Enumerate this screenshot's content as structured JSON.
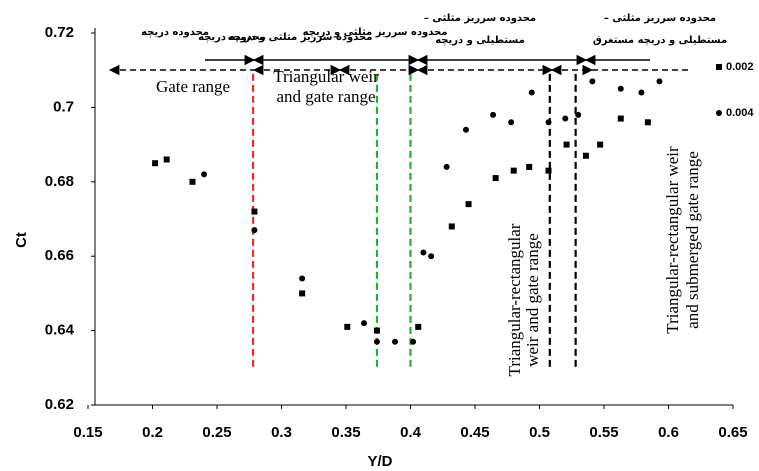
{
  "chart_data": {
    "type": "scatter",
    "x_label": "Y/D",
    "y_label": "Ct",
    "xlim": [
      0.15,
      0.65
    ],
    "xticks": [
      0.15,
      0.2,
      0.25,
      0.3,
      0.35,
      0.4,
      0.45,
      0.5,
      0.55,
      0.6,
      0.65
    ],
    "ylim": [
      0.62,
      0.72
    ],
    "yticks": [
      0.62,
      0.64,
      0.66,
      0.68,
      0.7,
      0.72
    ],
    "series": [
      {
        "name": "0.002",
        "marker": "square",
        "color": "#000000",
        "x": [
          0.202,
          0.211,
          0.231,
          0.279,
          0.316,
          0.351,
          0.374,
          0.406,
          0.432,
          0.445,
          0.466,
          0.48,
          0.492,
          0.507,
          0.521,
          0.536,
          0.547,
          0.563,
          0.584
        ],
        "values": [
          0.685,
          0.686,
          0.68,
          0.672,
          0.65,
          0.641,
          0.64,
          0.641,
          0.668,
          0.674,
          0.681,
          0.683,
          0.684,
          0.683,
          0.69,
          0.687,
          0.69,
          0.697,
          0.696
        ]
      },
      {
        "name": "0.004",
        "marker": "circle",
        "color": "#000000",
        "x": [
          0.24,
          0.279,
          0.316,
          0.364,
          0.374,
          0.388,
          0.402,
          0.41,
          0.416,
          0.428,
          0.443,
          0.464,
          0.478,
          0.494,
          0.507,
          0.52,
          0.53,
          0.541,
          0.563,
          0.579,
          0.593
        ],
        "values": [
          0.682,
          0.667,
          0.654,
          0.642,
          0.637,
          0.637,
          0.637,
          0.661,
          0.66,
          0.684,
          0.694,
          0.698,
          0.696,
          0.704,
          0.696,
          0.697,
          0.698,
          0.707,
          0.705,
          0.704,
          0.707
        ]
      }
    ],
    "reference_lines": [
      {
        "x": 0.278,
        "color": "#e03030"
      },
      {
        "x": 0.374,
        "color": "#2eaa3c"
      },
      {
        "x": 0.4,
        "color": "#2eaa3c"
      },
      {
        "x": 0.508,
        "color": "#000000"
      },
      {
        "x": 0.528,
        "color": "#000000"
      }
    ],
    "annotations": [
      {
        "lines": [
          "محدوده دریچه"
        ]
      },
      {
        "lines": [
          "محدوده دریچه"
        ]
      },
      {
        "lines": [
          "محدوده سرریز مثلثی و دریچه"
        ]
      },
      {
        "lines": [
          "محدوده سرریز مثلثی و دریچه"
        ]
      },
      {
        "lines": [
          "محدوده سرریز مثلثی –",
          "مستطیلی و دریچه"
        ]
      },
      {
        "lines": [
          "محدوده سرریز مثلثی –",
          "مستطیلی و دریچه مستغرق"
        ]
      },
      {
        "lines": [
          "Gate range"
        ]
      },
      {
        "lines": [
          "Triangular weir",
          "and gate range"
        ]
      },
      {
        "lines": [
          "Triangular-rectangular",
          "weir and gate range"
        ]
      },
      {
        "lines": [
          "Triangular-rectangular weir",
          "and submerged gate range"
        ]
      }
    ]
  }
}
